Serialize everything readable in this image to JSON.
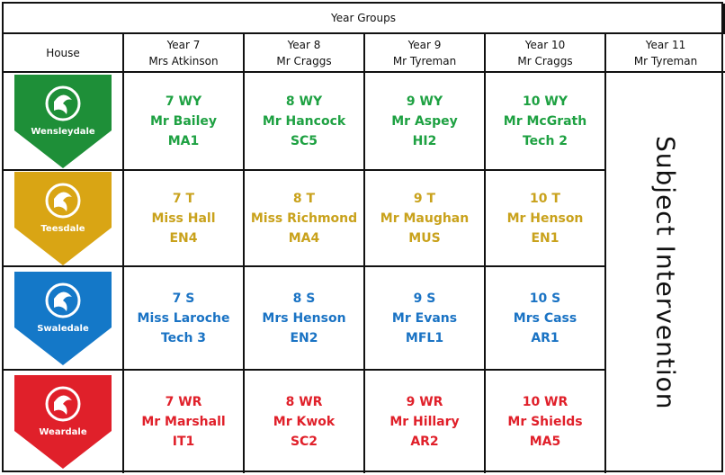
{
  "title": "Year Groups",
  "house_header": "House",
  "years": [
    {
      "year": "Year 7",
      "leader": "Mrs Atkinson"
    },
    {
      "year": "Year 8",
      "leader": "Mr Craggs"
    },
    {
      "year": "Year 9",
      "leader": "Mr Tyreman"
    },
    {
      "year": "Year 10",
      "leader": "Mr Craggs"
    },
    {
      "year": "Year 11",
      "leader": "Mr Tyreman"
    }
  ],
  "intervention": "Subject Intervention",
  "houses": [
    {
      "name": "Wensleydale",
      "color": "#1e8f38",
      "text_color": "#1ea142",
      "groups": [
        {
          "form": "7 WY",
          "tutor": "Mr Bailey",
          "room": "MA1"
        },
        {
          "form": "8 WY",
          "tutor": "Mr Hancock",
          "room": "SC5"
        },
        {
          "form": "9 WY",
          "tutor": "Mr Aspey",
          "room": "HI2"
        },
        {
          "form": "10 WY",
          "tutor": "Mr McGrath",
          "room": "Tech 2"
        }
      ]
    },
    {
      "name": "Teesdale",
      "color": "#d9a514",
      "text_color": "#c9a21c",
      "groups": [
        {
          "form": "7 T",
          "tutor": "Miss Hall",
          "room": "EN4"
        },
        {
          "form": "8 T",
          "tutor": "Miss Richmond",
          "room": "MA4"
        },
        {
          "form": "9 T",
          "tutor": "Mr Maughan",
          "room": "MUS"
        },
        {
          "form": "10 T",
          "tutor": "Mr Henson",
          "room": "EN1"
        }
      ]
    },
    {
      "name": "Swaledale",
      "color": "#1478c8",
      "text_color": "#1a73c4",
      "groups": [
        {
          "form": "7 S",
          "tutor": "Miss Laroche",
          "room": "Tech 3"
        },
        {
          "form": "8 S",
          "tutor": "Mrs Henson",
          "room": "EN2"
        },
        {
          "form": "9 S",
          "tutor": "Mr Evans",
          "room": "MFL1"
        },
        {
          "form": "10 S",
          "tutor": "Mrs Cass",
          "room": "AR1"
        }
      ]
    },
    {
      "name": "Weardale",
      "color": "#e0202a",
      "text_color": "#e0202a",
      "groups": [
        {
          "form": "7 WR",
          "tutor": "Mr Marshall",
          "room": "IT1"
        },
        {
          "form": "8 WR",
          "tutor": "Mr Kwok",
          "room": "SC2"
        },
        {
          "form": "9 WR",
          "tutor": "Mr Hillary",
          "room": "AR2"
        },
        {
          "form": "10 WR",
          "tutor": "Mr Shields",
          "room": "MA5"
        }
      ]
    }
  ]
}
